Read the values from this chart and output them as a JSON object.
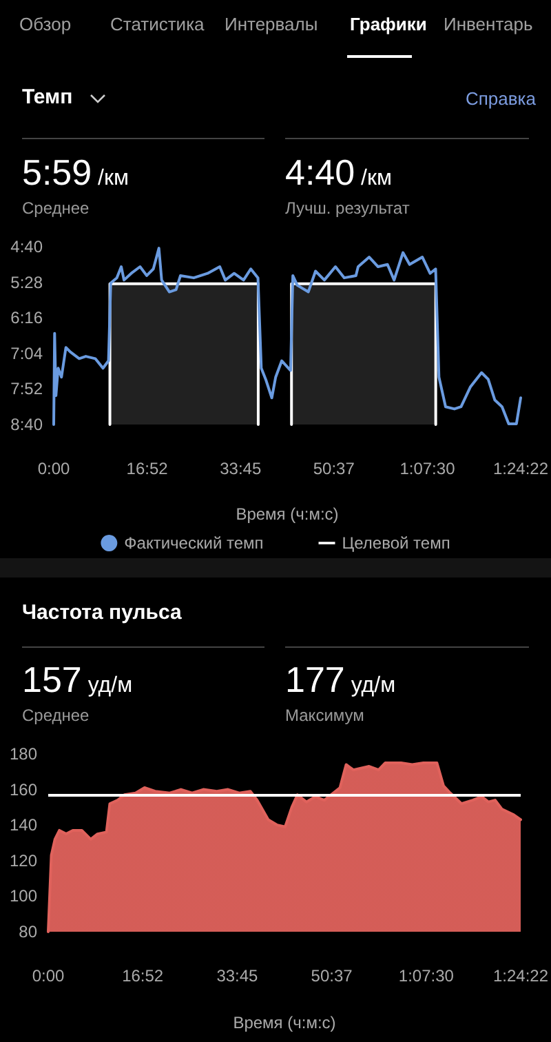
{
  "chart_data": [
    {
      "type": "line",
      "title": "Темп",
      "annotations": [
        "Обзор",
        "Статистика",
        "Интервалы",
        "Графики",
        "Инвентарь",
        "Справка",
        "5:59 /км",
        "Среднее",
        "4:40 /км",
        "Лучш. результат"
      ],
      "xlabel": "Время (ч:м:с)",
      "xlim": [
        0,
        84.37
      ],
      "xticks": [
        {
          "value": 0,
          "label": "0:00"
        },
        {
          "value": 16.87,
          "label": "16:52"
        },
        {
          "value": 33.75,
          "label": "33:45"
        },
        {
          "value": 50.62,
          "label": "50:37"
        },
        {
          "value": 67.5,
          "label": "1:07:30"
        },
        {
          "value": 84.37,
          "label": "1:24:22"
        }
      ],
      "ylim": [
        520,
        280
      ],
      "yticks": [
        {
          "value": 280,
          "label": "4:40"
        },
        {
          "value": 328,
          "label": "5:28"
        },
        {
          "value": 376,
          "label": "6:16"
        },
        {
          "value": 424,
          "label": "7:04"
        },
        {
          "value": 472,
          "label": "7:52"
        },
        {
          "value": 520,
          "label": "8:40"
        }
      ],
      "legend": "bottom",
      "series": [
        {
          "name": "Фактический темп",
          "type": "line",
          "color": "#6a9be0",
          "x": [
            0,
            0.16,
            0.4,
            0.8,
            1.4,
            2.2,
            3.0,
            4.6,
            5.8,
            7.5,
            8.9,
            9.9,
            10.3,
            11.4,
            12.2,
            12.7,
            14.0,
            15.6,
            16.8,
            18.0,
            19.0,
            19.5,
            20.9,
            22.1,
            22.9,
            25.3,
            27.8,
            30.0,
            31.0,
            32.6,
            34.3,
            35.6,
            36.9,
            37.5,
            38.3,
            39.4,
            40.1,
            41.2,
            42.8,
            43.2,
            44.0,
            46.0,
            47.3,
            48.9,
            50.9,
            52.5,
            54.6,
            55.0,
            57.0,
            58.6,
            60.3,
            61.5,
            63.1,
            64.3,
            66.6,
            68.0,
            69.0,
            69.6,
            70.8,
            72.4,
            73.6,
            75.3,
            77.3,
            78.5,
            79.7,
            81.0,
            82.2,
            83.6,
            84.37
          ],
          "values": [
            520,
            397,
            481,
            444,
            456,
            416,
            422,
            431,
            428,
            431,
            444,
            434,
            329,
            322,
            307,
            325,
            316,
            307,
            319,
            310,
            282,
            325,
            341,
            338,
            319,
            322,
            316,
            307,
            325,
            316,
            325,
            310,
            322,
            444,
            459,
            484,
            456,
            434,
            447,
            319,
            332,
            341,
            313,
            325,
            307,
            322,
            319,
            307,
            294,
            307,
            304,
            325,
            288,
            304,
            294,
            316,
            310,
            456,
            496,
            499,
            496,
            469,
            450,
            459,
            487,
            496,
            519,
            519,
            484
          ]
        },
        {
          "name": "Целевой темп",
          "type": "area",
          "color": "#ffffff",
          "x": [
            10.15,
            10.15,
            36.95,
            36.95,
            40,
            42.96,
            42.96,
            69.02,
            69.02
          ],
          "values": [
            520,
            330,
            330,
            520,
            null,
            520,
            330,
            330,
            520
          ]
        }
      ]
    },
    {
      "type": "area",
      "title": "Частота пульса",
      "annotations": [
        "157 уд/м",
        "Среднее",
        "177 уд/м",
        "Максимум"
      ],
      "xlabel": "Время (ч:м:с)",
      "xlim": [
        0,
        84.37
      ],
      "xticks": [
        {
          "value": 0,
          "label": "0:00"
        },
        {
          "value": 16.87,
          "label": "16:52"
        },
        {
          "value": 33.75,
          "label": "33:45"
        },
        {
          "value": 50.62,
          "label": "50:37"
        },
        {
          "value": 67.5,
          "label": "1:07:30"
        },
        {
          "value": 84.37,
          "label": "1:24:22"
        }
      ],
      "ylim": [
        80,
        180
      ],
      "yticks": [
        80,
        100,
        120,
        140,
        160,
        180
      ],
      "ref_lines": [
        {
          "axis": "y",
          "value": 157,
          "color": "#ffffff"
        }
      ],
      "series": [
        {
          "color": "#e0625c",
          "x": [
            0,
            0.56,
            1.2,
            2.0,
            3.2,
            4.4,
            6.0,
            7.6,
            8.8,
            10.4,
            11.0,
            12.4,
            13.6,
            15.6,
            17.2,
            19.1,
            21.7,
            23.7,
            25.7,
            27.7,
            30.1,
            32.1,
            34.1,
            36.1,
            37.3,
            39.3,
            40.9,
            42.3,
            43.5,
            44.5,
            46.1,
            47.7,
            49.3,
            50.9,
            52.1,
            53.2,
            54.5,
            57.3,
            59.0,
            60.2,
            63.0,
            65.0,
            67.0,
            69.4,
            70.6,
            71.8,
            73.8,
            75.8,
            77.4,
            78.6,
            79.8,
            81.0,
            83.0,
            84.37
          ],
          "values": [
            80,
            123,
            132,
            137,
            135,
            137,
            137,
            132,
            135,
            136,
            152,
            154,
            157,
            158,
            161,
            159,
            158,
            160,
            158,
            160,
            159,
            160,
            158,
            159,
            154,
            143,
            140,
            139,
            150,
            157,
            153,
            156,
            154,
            158,
            161,
            174,
            171,
            173,
            171,
            175,
            175,
            174,
            175,
            175,
            162,
            158,
            152,
            154,
            156,
            153,
            154,
            149,
            146,
            143
          ]
        }
      ]
    }
  ]
}
